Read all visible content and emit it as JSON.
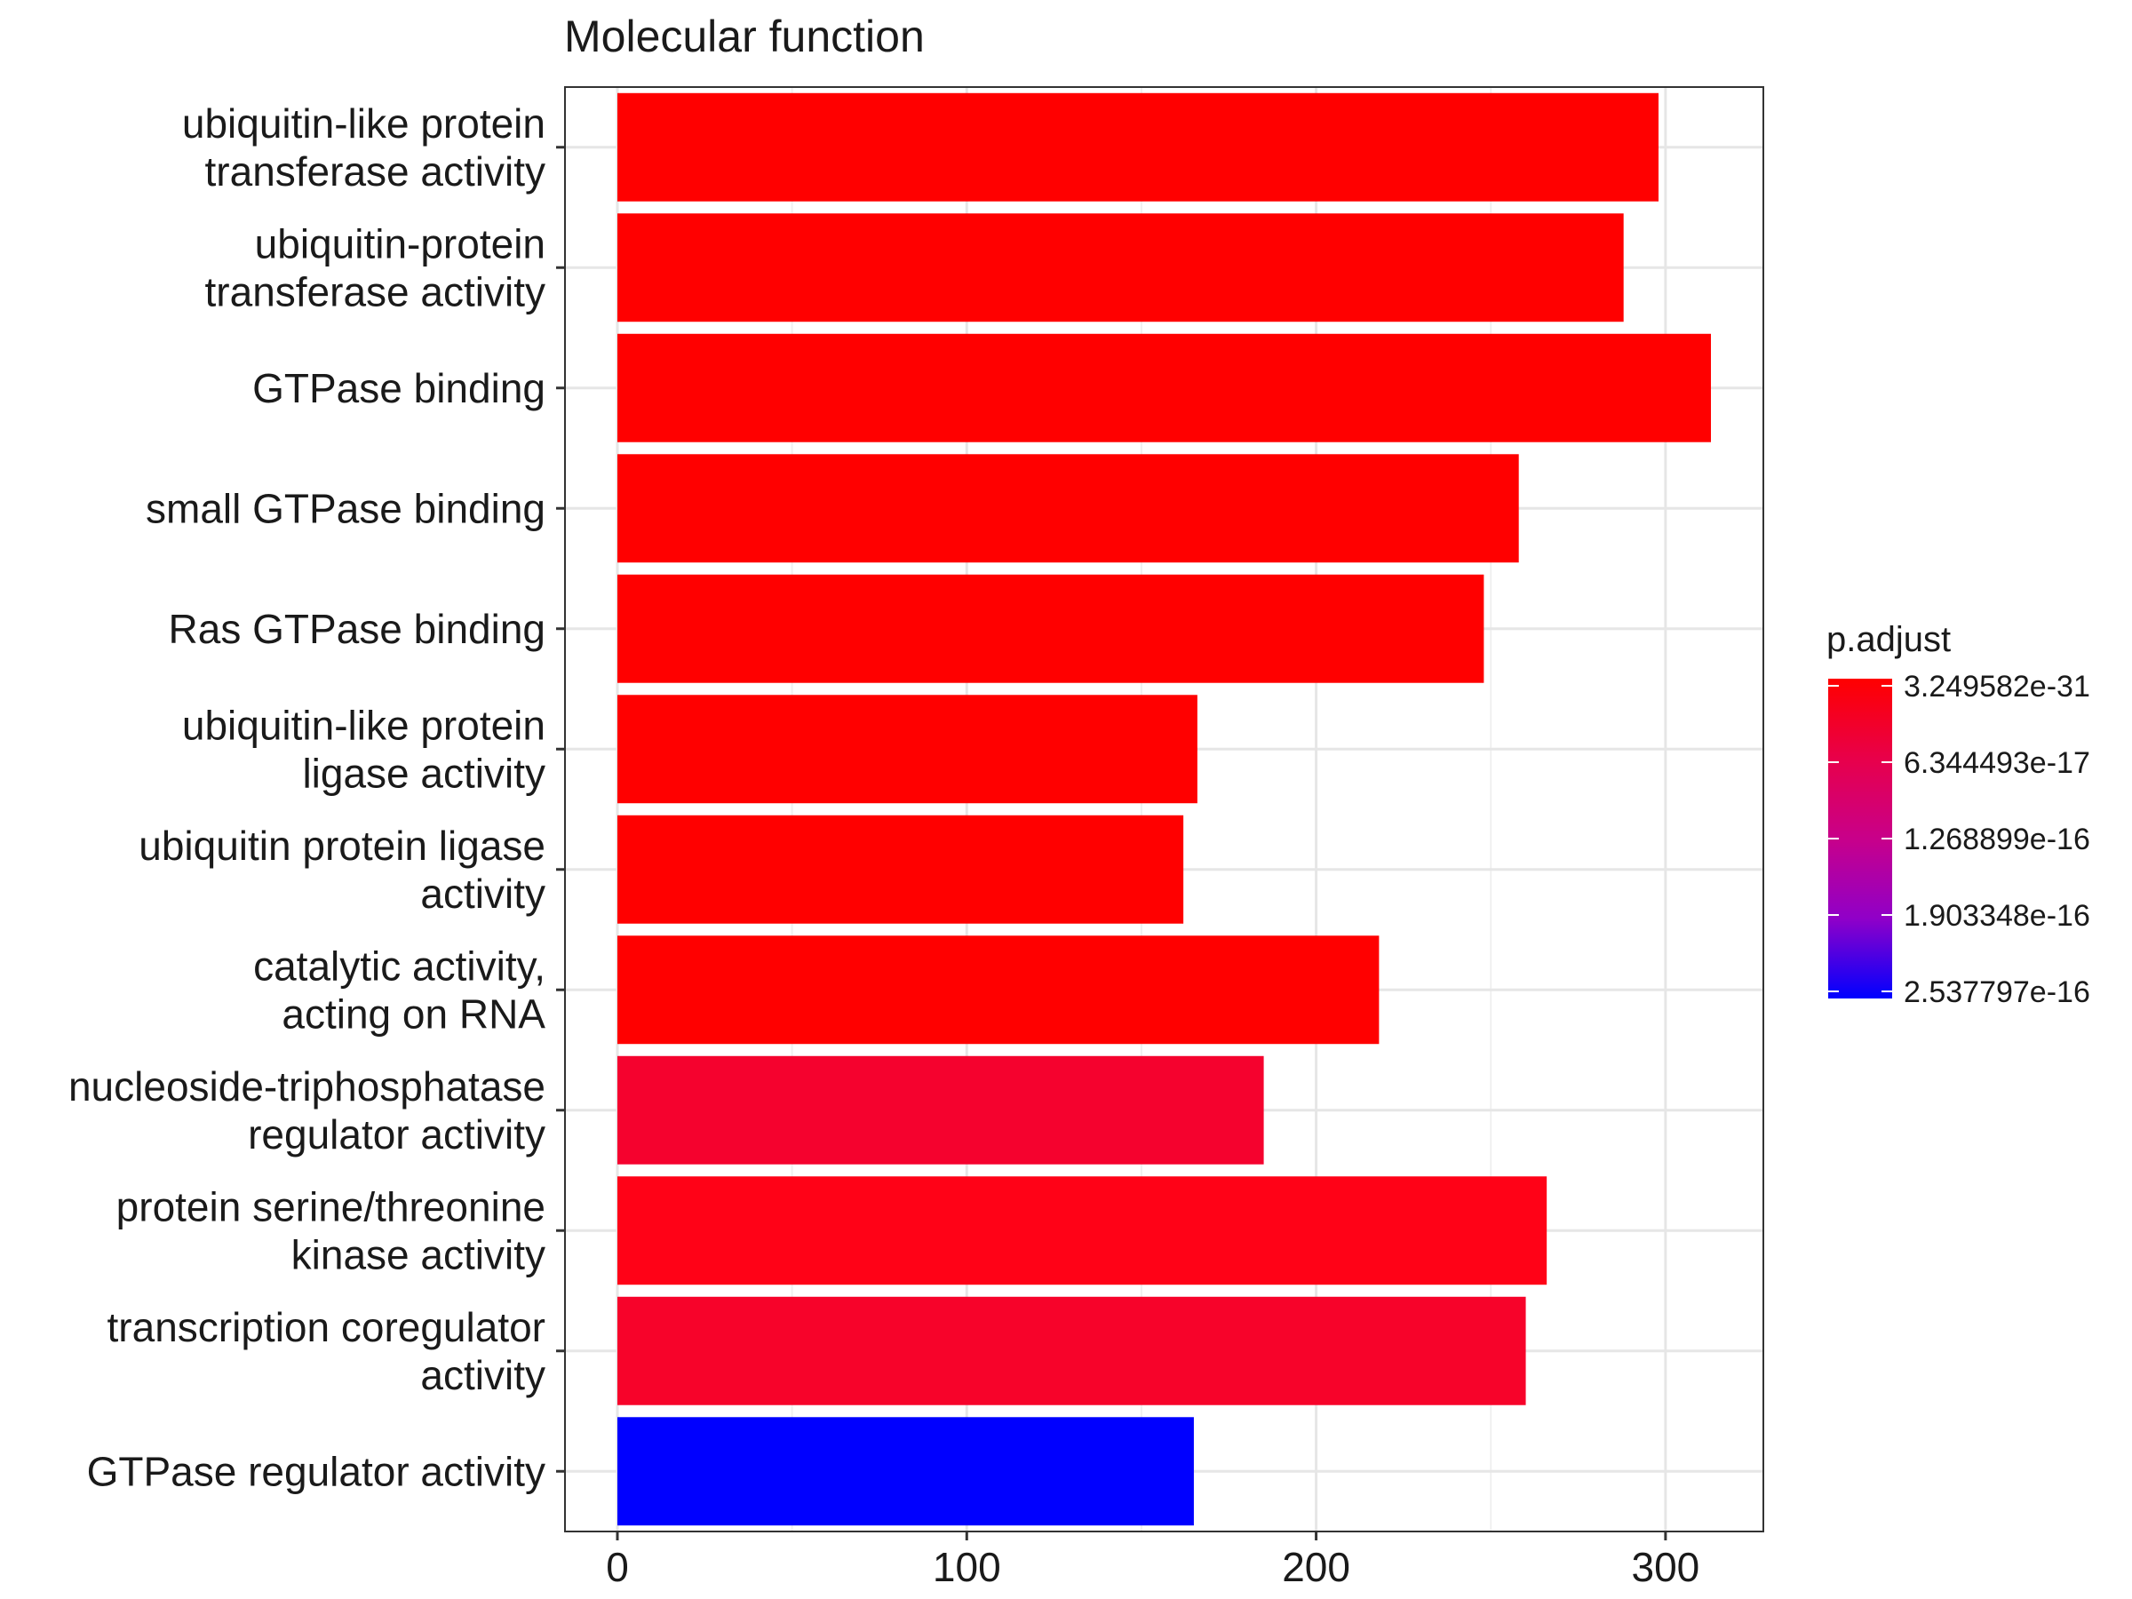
{
  "chart_data": {
    "type": "bar",
    "orientation": "horizontal",
    "title": "Molecular function",
    "xlabel": "",
    "ylabel": "",
    "xlim": [
      -15,
      328
    ],
    "x_ticks": [
      0,
      100,
      200,
      300
    ],
    "grid": true,
    "categories": [
      [
        "ubiquitin-like protein",
        "transferase activity"
      ],
      [
        "ubiquitin-protein",
        "transferase activity"
      ],
      [
        "GTPase binding"
      ],
      [
        "small GTPase binding"
      ],
      [
        "Ras GTPase binding"
      ],
      [
        "ubiquitin-like protein",
        "ligase activity"
      ],
      [
        "ubiquitin protein ligase",
        "activity"
      ],
      [
        "catalytic activity,",
        "acting on RNA"
      ],
      [
        "nucleoside-triphosphatase",
        "regulator activity"
      ],
      [
        "protein serine/threonine",
        "kinase activity"
      ],
      [
        "transcription coregulator",
        "activity"
      ],
      [
        "GTPase regulator activity"
      ]
    ],
    "values": [
      298,
      288,
      313,
      258,
      248,
      166,
      162,
      218,
      185,
      266,
      260,
      165
    ],
    "colors": [
      "#FF0000",
      "#FF0000",
      "#FF0000",
      "#FF0000",
      "#FF0000",
      "#FF0000",
      "#FF0000",
      "#FF0000",
      "#F5022E",
      "#FF0217",
      "#F7032A",
      "#0000FF"
    ],
    "legend": {
      "title": "p.adjust",
      "position": "right",
      "labels": [
        "3.249582e-31",
        "6.344493e-17",
        "1.268899e-16",
        "1.903348e-16",
        "2.537797e-16"
      ],
      "gradient": [
        "#FF0000",
        "#E8004A",
        "#C8008A",
        "#9000C8",
        "#0000FF"
      ]
    }
  }
}
